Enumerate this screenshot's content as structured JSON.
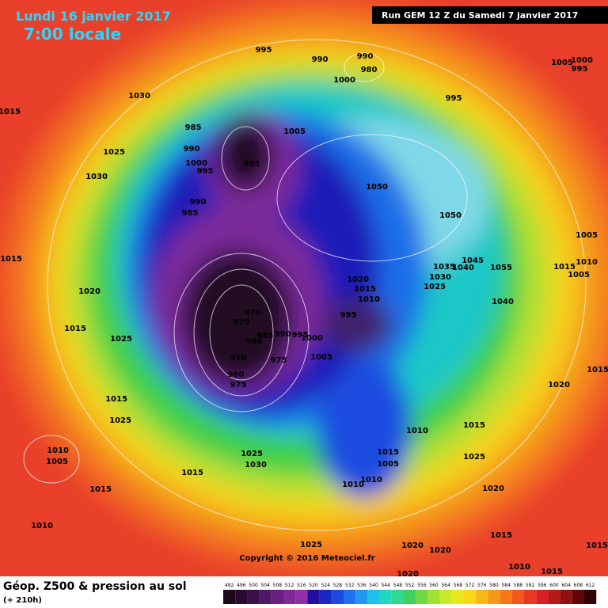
{
  "header": {
    "date": "Lundi 16 janvier 2017",
    "time": "7:00 locale",
    "run": "Run GEM 12 Z du Samedi 7 janvier 2017"
  },
  "footer": {
    "title": "Géop. Z500 & pression au sol",
    "lead": "(+ 210h)",
    "copyright": "Copyright © 2016 Meteociel.fr"
  },
  "scale": {
    "labels": [
      "492",
      "496",
      "500",
      "504",
      "508",
      "512",
      "516",
      "520",
      "524",
      "528",
      "532",
      "536",
      "540",
      "544",
      "548",
      "552",
      "556",
      "560",
      "564",
      "568",
      "572",
      "576",
      "580",
      "584",
      "588",
      "592",
      "596",
      "600",
      "604",
      "608",
      "612"
    ]
  },
  "isobar_labels": [
    "995",
    "990",
    "990",
    "980",
    "1000",
    "1005",
    "1000",
    "995",
    "1030",
    "1015",
    "995",
    "985",
    "1005",
    "1025",
    "990",
    "1000",
    "995",
    "985",
    "1030",
    "1050",
    "990",
    "985",
    "1050",
    "1005",
    "1015",
    "1035",
    "1045",
    "1040",
    "1010",
    "1015",
    "1005",
    "1020",
    "1030",
    "1055",
    "1025",
    "1015",
    "1040",
    "1010",
    "1020",
    "970",
    "995",
    "975",
    "985",
    "990",
    "995",
    "1000",
    "1015",
    "980",
    "1025",
    "970",
    "975",
    "1005",
    "1015",
    "960",
    "975",
    "1020",
    "1015",
    "1025",
    "1010",
    "1015",
    "1010",
    "1005",
    "1025",
    "1015",
    "1025",
    "1030",
    "1005",
    "1015",
    "1015",
    "1010",
    "1010",
    "1020",
    "1010",
    "1015",
    "1025",
    "1020",
    "1020",
    "1015",
    "1010",
    "1015",
    "1020"
  ]
}
